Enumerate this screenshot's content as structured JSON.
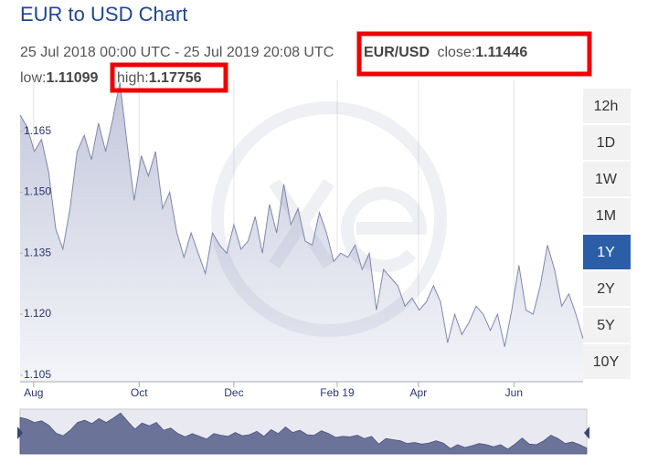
{
  "chart_data": {
    "type": "area",
    "title": "EUR to USD Chart",
    "subtitle": "25 Jul 2018 00:00 UTC - 25 Jul 2019 20:08 UTC",
    "pair": "EUR/USD",
    "summary": [
      {
        "label": "close:",
        "value": 1.11446
      },
      {
        "label": "low:",
        "value": 1.11099
      },
      {
        "label": "high:",
        "value": 1.17756
      }
    ],
    "ranges": [
      "12h",
      "1D",
      "1W",
      "1M",
      "1Y",
      "2Y",
      "5Y",
      "10Y"
    ],
    "active_range": "1Y",
    "values": [
      1.169,
      1.166,
      1.16,
      1.163,
      1.155,
      1.141,
      1.136,
      1.146,
      1.16,
      1.164,
      1.158,
      1.167,
      1.16,
      1.168,
      1.177,
      1.162,
      1.148,
      1.159,
      1.154,
      1.16,
      1.146,
      1.15,
      1.14,
      1.134,
      1.14,
      1.135,
      1.13,
      1.14,
      1.137,
      1.135,
      1.142,
      1.136,
      1.138,
      1.144,
      1.135,
      1.147,
      1.14,
      1.152,
      1.142,
      1.146,
      1.138,
      1.137,
      1.145,
      1.14,
      1.133,
      1.135,
      1.134,
      1.137,
      1.131,
      1.135,
      1.121,
      1.131,
      1.129,
      1.127,
      1.122,
      1.124,
      1.121,
      1.123,
      1.127,
      1.123,
      1.113,
      1.12,
      1.115,
      1.118,
      1.122,
      1.12,
      1.116,
      1.12,
      1.112,
      1.121,
      1.132,
      1.121,
      1.12,
      1.127,
      1.137,
      1.131,
      1.122,
      1.125,
      1.12,
      1.114
    ],
    "color": "#7f87ad",
    "fill": "#c9cce0",
    "navigator_color": "#6b7399",
    "xlim": [
      0,
      79
    ],
    "xticks": [
      {
        "value": 1.9,
        "label": "Aug"
      },
      {
        "value": 16.7,
        "label": "Oct"
      },
      {
        "value": 30.0,
        "label": "Dec"
      },
      {
        "value": 44.5,
        "label": "Feb 19"
      },
      {
        "value": 55.9,
        "label": "Apr"
      },
      {
        "value": 69.3,
        "label": "Jun"
      }
    ],
    "ylim": [
      1.1034,
      1.1775
    ],
    "yticks": [
      1.105,
      {
        "value": 1.12,
        "label": "1.120"
      },
      1.135,
      {
        "value": 1.15,
        "label": "1.150"
      },
      1.165
    ],
    "grid": "x"
  }
}
